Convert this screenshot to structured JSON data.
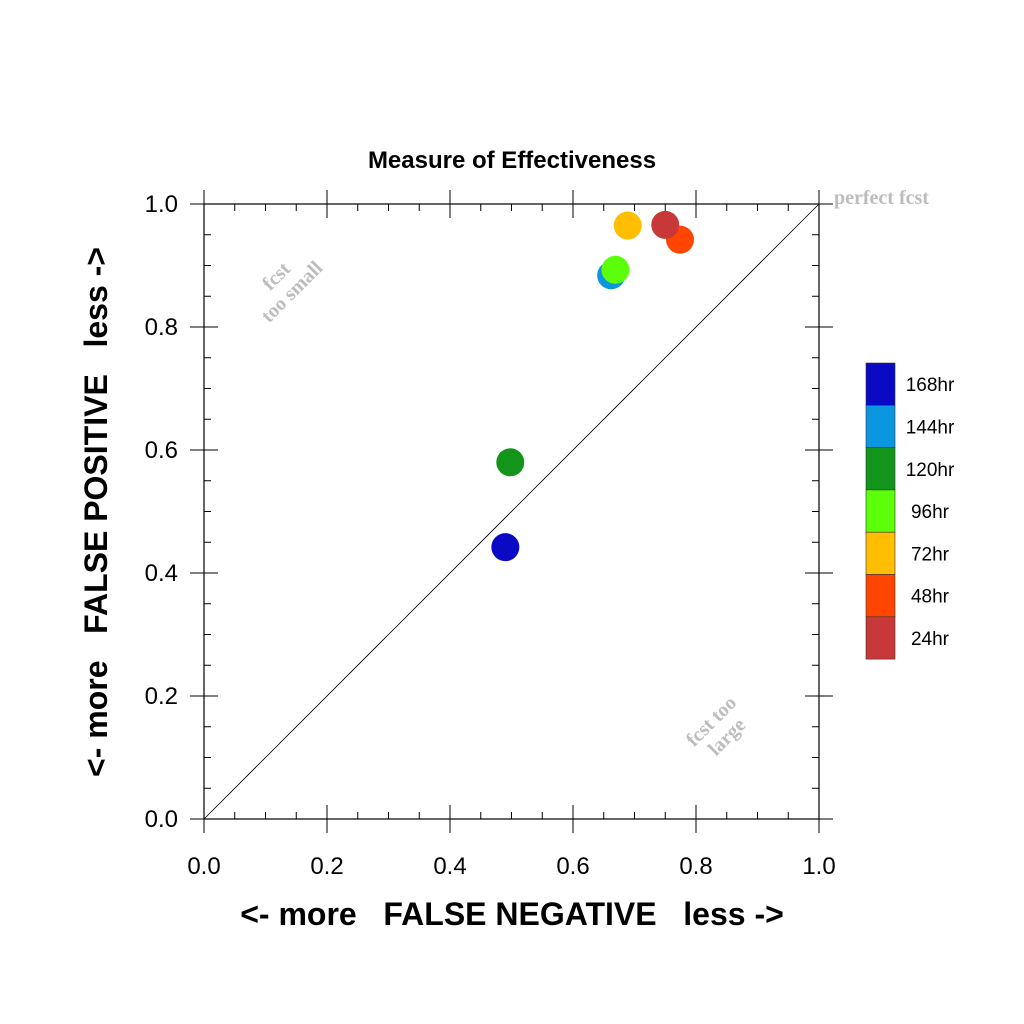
{
  "chart_data": {
    "type": "scatter",
    "title": "Measure of Effectiveness",
    "xlabel": "<- more   FALSE NEGATIVE   less ->",
    "ylabel": "<- more   FALSE POSITIVE   less ->",
    "xlim": [
      0.0,
      1.0
    ],
    "ylim": [
      0.0,
      1.0
    ],
    "xticks": [
      "0.0",
      "0.2",
      "0.4",
      "0.6",
      "0.8",
      "1.0"
    ],
    "yticks": [
      "0.0",
      "0.2",
      "0.4",
      "0.6",
      "0.8",
      "1.0"
    ],
    "grid": false,
    "legend_position": "right",
    "reference_line": {
      "from": [
        0,
        0
      ],
      "to": [
        1,
        1
      ],
      "label": "perfect fcst"
    },
    "annotations": [
      {
        "text": "fcst too small",
        "x": 0.13,
        "y": 0.87
      },
      {
        "text": "fcst too large",
        "x": 0.84,
        "y": 0.15
      }
    ],
    "series": [
      {
        "name": "168hr",
        "color": "#0a0ac4",
        "x": 0.49,
        "y": 0.442
      },
      {
        "name": "144hr",
        "color": "#0b96e0",
        "x": 0.662,
        "y": 0.884
      },
      {
        "name": "120hr",
        "color": "#13951c",
        "x": 0.498,
        "y": 0.58
      },
      {
        "name": "96hr",
        "color": "#5bff0a",
        "x": 0.669,
        "y": 0.893
      },
      {
        "name": "72hr",
        "color": "#ffbf00",
        "x": 0.689,
        "y": 0.965
      },
      {
        "name": "48hr",
        "color": "#ff4500",
        "x": 0.774,
        "y": 0.942
      },
      {
        "name": "24hr",
        "color": "#c83838",
        "x": 0.75,
        "y": 0.966
      }
    ]
  }
}
